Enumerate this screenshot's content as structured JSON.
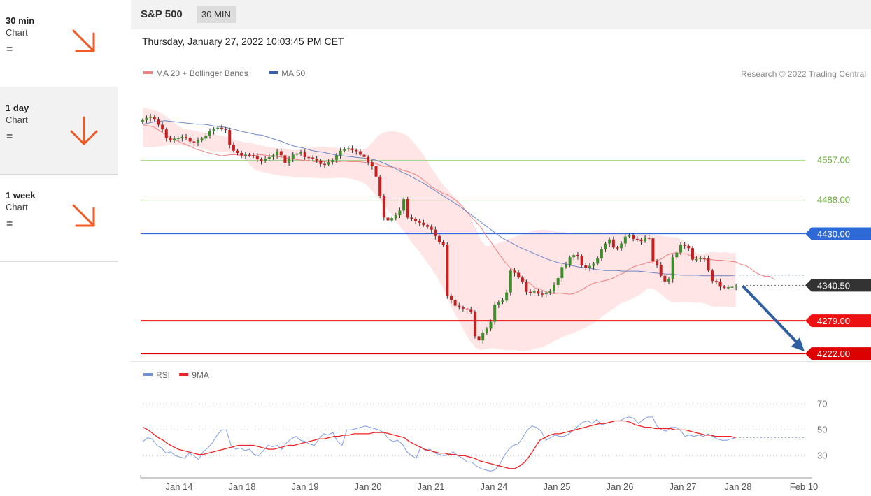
{
  "sidebar": {
    "items": [
      {
        "name": "30 min",
        "sub": "Chart",
        "eq": "=",
        "icon": "arrow-down-right-icon"
      },
      {
        "name": "1 day",
        "sub": "Chart",
        "eq": "=",
        "icon": "arrow-down-icon"
      },
      {
        "name": "1 week",
        "sub": "Chart",
        "eq": "=",
        "icon": "arrow-down-right-icon"
      }
    ],
    "arrow_color": "#f15a24"
  },
  "header": {
    "symbol": "S&P 500",
    "interval": "30 MIN",
    "datetime": "Thursday, January 27, 2022 10:03:45 PM CET"
  },
  "chart_data": [
    {
      "type": "candlestick",
      "title": "S&P 500",
      "legend": [
        {
          "name": "MA 20 + Bollinger Bands",
          "color": "#f08080"
        },
        {
          "name": "MA 50",
          "color": "#3a60a8"
        }
      ],
      "credit": "Research © 2022 Trading Central",
      "ylim": [
        4210,
        4690
      ],
      "levels": [
        {
          "label": "4557.00",
          "value": 4557,
          "kind": "target",
          "color": "#8ccd6e",
          "text_color": "#6aab3c"
        },
        {
          "label": "4488.00",
          "value": 4488,
          "kind": "target",
          "color": "#8ccd6e",
          "text_color": "#6aab3c"
        },
        {
          "label": "4430.00",
          "value": 4430,
          "kind": "pivot",
          "color": "#2d6ad8"
        },
        {
          "label": "4340.50",
          "value": 4340.5,
          "kind": "last",
          "color": "#333333"
        },
        {
          "label": "4279.00",
          "value": 4279,
          "kind": "support",
          "color": "#ee1111"
        },
        {
          "label": "4222.00",
          "value": 4222,
          "kind": "support",
          "color": "#dd0000"
        }
      ],
      "forecast_arrow": {
        "from": 4340,
        "to": 4222,
        "color": "#2f5fa0"
      },
      "close_series": [
        4627,
        4631,
        4633,
        4628,
        4619,
        4611,
        4596,
        4592,
        4595,
        4596,
        4598,
        4596,
        4590,
        4588,
        4592,
        4595,
        4600,
        4608,
        4612,
        4614,
        4612,
        4610,
        4584,
        4574,
        4570,
        4566,
        4567,
        4566,
        4565,
        4559,
        4556,
        4560,
        4563,
        4566,
        4573,
        4566,
        4553,
        4560,
        4567,
        4569,
        4571,
        4563,
        4562,
        4560,
        4557,
        4551,
        4550,
        4554,
        4558,
        4566,
        4574,
        4577,
        4578,
        4575,
        4573,
        4567,
        4563,
        4554,
        4547,
        4529,
        4495,
        4458,
        4453,
        4457,
        4462,
        4470,
        4490,
        4458,
        4456,
        4452,
        4449,
        4445,
        4442,
        4437,
        4426,
        4415,
        4411,
        4322,
        4315,
        4305,
        4302,
        4300,
        4298,
        4294,
        4252,
        4245,
        4258,
        4265,
        4277,
        4307,
        4311,
        4314,
        4328,
        4366,
        4362,
        4354,
        4346,
        4329,
        4328,
        4331,
        4326,
        4325,
        4327,
        4330,
        4341,
        4353,
        4372,
        4376,
        4389,
        4393,
        4391,
        4375,
        4370,
        4374,
        4378,
        4387,
        4403,
        4413,
        4420,
        4406,
        4405,
        4413,
        4425,
        4427,
        4421,
        4420,
        4417,
        4423,
        4422,
        4382,
        4376,
        4357,
        4347,
        4351,
        4389,
        4397,
        4411,
        4409,
        4405,
        4385,
        4386,
        4388,
        4387,
        4366,
        4348,
        4347,
        4338,
        4337,
        4337,
        4338,
        4340
      ],
      "ma20": [
        4619,
        4617,
        4616,
        4611,
        4605,
        4600,
        4594,
        4591,
        4587,
        4584,
        4580,
        4576,
        4574,
        4571,
        4569,
        4567,
        4565,
        4566,
        4567,
        4567,
        4566,
        4565,
        4565,
        4566,
        4567,
        4566,
        4565,
        4565,
        4563,
        4562,
        4560,
        4559,
        4558,
        4557,
        4557,
        4555,
        4555,
        4555,
        4556,
        4555,
        4555,
        4556,
        4555,
        4555,
        4555,
        4554,
        4553,
        4553,
        4550,
        4547,
        4547,
        4545,
        4544,
        4540,
        4538,
        4535,
        4531,
        4525,
        4518,
        4511,
        4506,
        4501,
        4498,
        4493,
        4487,
        4479,
        4469,
        4459,
        4450,
        4441,
        4427,
        4416,
        4403,
        4391,
        4380,
        4370,
        4365,
        4357,
        4349,
        4344,
        4336,
        4334,
        4330,
        4327,
        4326,
        4327,
        4326,
        4325,
        4326,
        4330,
        4335,
        4340,
        4344,
        4346,
        4348,
        4350,
        4353,
        4358,
        4361,
        4367,
        4372,
        4375,
        4377,
        4380,
        4381,
        4383,
        4387,
        4393,
        4396,
        4397,
        4395,
        4395,
        4391,
        4388,
        4387,
        4385,
        4385,
        4384,
        4384,
        4383,
        4382,
        4381,
        4377,
        4375,
        4370,
        4363,
        4359,
        4356,
        4356,
        4350
      ],
      "bb_upper": [
        4649,
        4647,
        4645,
        4642,
        4638,
        4632,
        4625,
        4618,
        4613,
        4611,
        4610,
        4608,
        4606,
        4605,
        4603,
        4601,
        4600,
        4598,
        4595,
        4592,
        4590,
        4588,
        4588,
        4585,
        4583,
        4581,
        4580,
        4579,
        4578,
        4578,
        4576,
        4575,
        4576,
        4578,
        4579,
        4580,
        4581,
        4581,
        4580,
        4580,
        4578,
        4577,
        4577,
        4576,
        4576,
        4576,
        4580,
        4590,
        4600,
        4605,
        4607,
        4608,
        4606,
        4604,
        4600,
        4591,
        4580,
        4570,
        4556,
        4543,
        4530,
        4517,
        4508,
        4499,
        4490,
        4480,
        4470,
        4456,
        4437,
        4419,
        4408,
        4410,
        4412,
        4415,
        4418,
        4422,
        4425,
        4428,
        4431,
        4433,
        4436,
        4437,
        4437,
        4436,
        4434,
        4433,
        4433,
        4431,
        4430,
        4431,
        4431,
        4431,
        4431,
        4432,
        4431,
        4432,
        4432,
        4431,
        4432,
        4431,
        4430,
        4431,
        4430,
        4431,
        4429,
        4428,
        4426,
        4425,
        4424,
        4424,
        4420,
        4414,
        4406,
        4396,
        4394,
        4396,
        4398,
        4398,
        4397,
        4398,
        4396,
        4397
      ],
      "bb_lower": [
        4580,
        4580,
        4580,
        4581,
        4582,
        4583,
        4584,
        4584,
        4583,
        4582,
        4581,
        4580,
        4578,
        4575,
        4573,
        4572,
        4572,
        4571,
        4569,
        4567,
        4563,
        4557,
        4548,
        4540,
        4538,
        4536,
        4534,
        4532,
        4531,
        4530,
        4529,
        4528,
        4528,
        4528,
        4527,
        4527,
        4526,
        4526,
        4526,
        4527,
        4527,
        4527,
        4526,
        4524,
        4522,
        4518,
        4512,
        4502,
        4492,
        4481,
        4471,
        4460,
        4448,
        4437,
        4426,
        4413,
        4403,
        4392,
        4380,
        4368,
        4355,
        4340,
        4322,
        4302,
        4286,
        4270,
        4254,
        4241,
        4232,
        4228,
        4230,
        4231,
        4231,
        4229,
        4228,
        4228,
        4228,
        4226,
        4226,
        4228,
        4230,
        4232,
        4235,
        4239,
        4244,
        4248,
        4252,
        4255,
        4258,
        4262,
        4266,
        4270,
        4275,
        4281,
        4288,
        4294,
        4299,
        4306,
        4311,
        4314,
        4318,
        4322,
        4328,
        4335,
        4335,
        4330,
        4323,
        4316,
        4311,
        4311,
        4312,
        4312,
        4311,
        4310,
        4310,
        4308,
        4304,
        4303,
        4304,
        4302,
        4302,
        4302
      ],
      "ma50": [
        4620,
        4622,
        4624,
        4625,
        4626,
        4625,
        4624,
        4623,
        4622,
        4621,
        4620,
        4620,
        4619,
        4617,
        4616,
        4615,
        4613,
        4611,
        4608,
        4606,
        4604,
        4602,
        4601,
        4598,
        4595,
        4592,
        4589,
        4585,
        4582,
        4580,
        4578,
        4575,
        4573,
        4572,
        4570,
        4568,
        4566,
        4565,
        4564,
        4563,
        4562,
        4561,
        4560,
        4558,
        4555,
        4551,
        4547,
        4542,
        4537,
        4533,
        4528,
        4523,
        4518,
        4512,
        4506,
        4500,
        4494,
        4488,
        4482,
        4476,
        4469,
        4462,
        4455,
        4448,
        4441,
        4434,
        4427,
        4421,
        4416,
        4411,
        4406,
        4402,
        4398,
        4394,
        4390,
        4386,
        4383,
        4380,
        4378,
        4376,
        4374,
        4372,
        4371,
        4370,
        4368,
        4367,
        4366,
        4366,
        4366,
        4365,
        4365,
        4365,
        4365,
        4364,
        4363,
        4362,
        4361,
        4360,
        4360,
        4359,
        4358,
        4358,
        4358,
        4358,
        4357,
        4357,
        4357,
        4357,
        4357,
        4357,
        4358
      ]
    },
    {
      "type": "line",
      "title": "RSI",
      "legend": [
        {
          "name": "RSI",
          "color": "#6d8ee0"
        },
        {
          "name": "9MA",
          "color": "#ee2222"
        }
      ],
      "ylim": [
        15,
        80
      ],
      "y_ticks": [
        30,
        50,
        70
      ],
      "x_ticks": [
        "Jan 14",
        "Jan 18",
        "Jan 19",
        "Jan 20",
        "Jan 21",
        "Jan 24",
        "Jan 25",
        "Jan 26",
        "Jan 27",
        "Jan 28",
        "Feb 10"
      ],
      "rsi": [
        41,
        44,
        43,
        38,
        36,
        32,
        33,
        30,
        29,
        28,
        32,
        30,
        27,
        33,
        36,
        40,
        46,
        50,
        50,
        38,
        35,
        36,
        34,
        35,
        31,
        30,
        34,
        38,
        37,
        38,
        35,
        40,
        43,
        45,
        42,
        41,
        39,
        38,
        43,
        47,
        46,
        48,
        41,
        38,
        50,
        50,
        51,
        52,
        53,
        52,
        51,
        50,
        48,
        43,
        41,
        42,
        39,
        33,
        30,
        28,
        37,
        34,
        35,
        32,
        31,
        30,
        31,
        33,
        30,
        28,
        25,
        25,
        22,
        20,
        19,
        18,
        19,
        23,
        30,
        35,
        38,
        39,
        44,
        50,
        53,
        52,
        49,
        42,
        44,
        46,
        45,
        45,
        47,
        50,
        53,
        56,
        57,
        55,
        58,
        54,
        55,
        56,
        57,
        57,
        59,
        60,
        59,
        55,
        58,
        60,
        60,
        53,
        50,
        49,
        52,
        52,
        50,
        45,
        46,
        45,
        46,
        45,
        47,
        45,
        43,
        42,
        42,
        43,
        44
      ],
      "ma9": [
        52,
        50,
        47,
        44,
        42,
        39,
        37,
        35,
        34,
        33,
        32,
        31,
        31,
        32,
        33,
        34,
        35,
        36,
        37,
        38,
        38,
        38,
        38,
        37,
        36,
        35,
        35,
        36,
        37,
        38,
        38,
        39,
        40,
        41,
        42,
        43,
        43,
        44,
        45,
        45,
        46,
        46,
        47,
        47,
        47,
        47,
        48,
        48,
        48,
        47,
        46,
        45,
        44,
        41,
        39,
        37,
        35,
        34,
        33,
        32,
        32,
        31,
        31,
        30,
        30,
        29,
        28,
        26,
        25,
        24,
        23,
        22,
        21,
        20,
        20,
        22,
        25,
        30,
        36,
        42,
        44,
        46,
        47,
        47,
        48,
        49,
        50,
        51,
        52,
        53,
        54,
        55,
        55,
        56,
        57,
        57,
        57,
        56,
        54,
        53,
        52,
        52,
        51,
        51,
        51,
        51,
        50,
        50,
        50,
        49,
        48,
        47,
        46,
        46,
        45,
        45,
        45,
        45,
        44
      ]
    }
  ]
}
